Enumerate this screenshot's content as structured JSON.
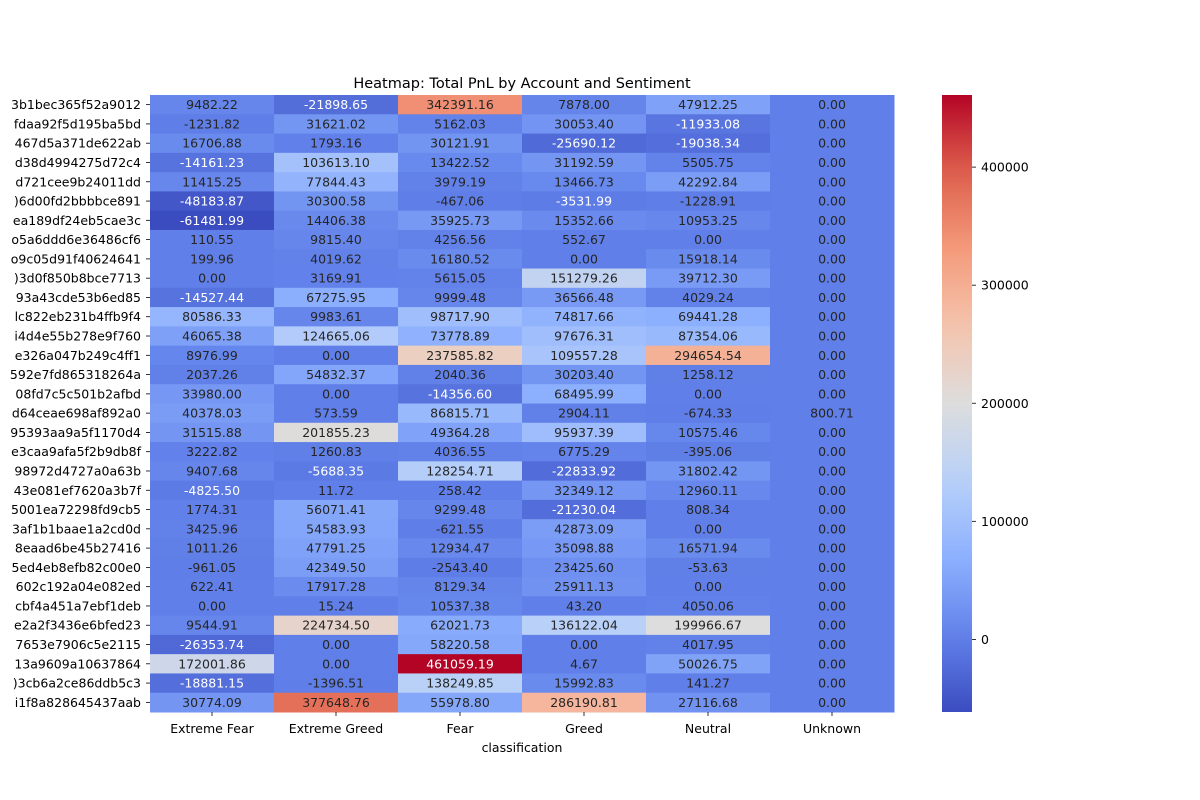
{
  "chart_data": {
    "type": "heatmap",
    "title": "Heatmap: Total PnL by Account and Sentiment",
    "xlabel": "classification",
    "ylabel": "",
    "columns": [
      "Extreme Fear",
      "Extreme Greed",
      "Fear",
      "Greed",
      "Neutral",
      "Unknown"
    ],
    "rows": [
      "3b1bec365f52a9012",
      "fdaa92f5d195ba5bd",
      "467d5a371de622ab",
      "d38d4994275d72c4",
      "d721cee9b24011dd",
      ")6d00fd2bbbbce891",
      "ea189df24eb5cae3c",
      "o5a6ddd6e36486cf6",
      "o9c05d91f40624641",
      ")3d0f850b8bce7713",
      "93a43cde53b6ed85",
      "lc822eb231b4ffb9f4",
      "i4d4e55b278e9f760",
      "e326a047b249c4ff1",
      "592e7fd865318264a",
      "08fd7c5c501b2afbd",
      "d64ceae698af892a0",
      "95393aa9a5f1170d4",
      "e3caa9afa5f2b9db8f",
      "98972d4727a0a63b",
      "43e081ef7620a3b7f",
      "5001ea72298fd9cb5",
      "3af1b1baae1a2cd0d",
      "8eaad6be45b27416",
      "5ed4eb8efb82c00e0",
      "602c192a04e082ed",
      "cbf4a451a7ebf1deb",
      "e2a2f3436e6bfed23",
      "7653e7906c5e2115",
      "13a9609a10637864",
      ")3cb6a2ce86ddb5c3",
      "i1f8a828645437aab"
    ],
    "values": [
      [
        9482.22,
        -21898.65,
        342391.16,
        7878.0,
        47912.25,
        0.0
      ],
      [
        -1231.82,
        31621.02,
        5162.03,
        30053.4,
        -11933.08,
        0.0
      ],
      [
        16706.88,
        1793.16,
        30121.91,
        -25690.12,
        -19038.34,
        0.0
      ],
      [
        -14161.23,
        103613.1,
        13422.52,
        31192.59,
        5505.75,
        0.0
      ],
      [
        11415.25,
        77844.43,
        3979.19,
        13466.73,
        42292.84,
        0.0
      ],
      [
        -48183.87,
        30300.58,
        -467.06,
        -3531.99,
        -1228.91,
        0.0
      ],
      [
        -61481.99,
        14406.38,
        35925.73,
        15352.66,
        10953.25,
        0.0
      ],
      [
        110.55,
        9815.4,
        4256.56,
        552.67,
        0.0,
        0.0
      ],
      [
        199.96,
        4019.62,
        16180.52,
        0.0,
        15918.14,
        0.0
      ],
      [
        0.0,
        3169.91,
        5615.05,
        151279.26,
        39712.3,
        0.0
      ],
      [
        -14527.44,
        67275.95,
        9999.48,
        36566.48,
        4029.24,
        0.0
      ],
      [
        80586.33,
        9983.61,
        98717.9,
        74817.66,
        69441.28,
        0.0
      ],
      [
        46065.38,
        124665.06,
        73778.89,
        97676.31,
        87354.06,
        0.0
      ],
      [
        8976.99,
        0.0,
        237585.82,
        109557.28,
        294654.54,
        0.0
      ],
      [
        2037.26,
        54832.37,
        2040.36,
        30203.4,
        1258.12,
        0.0
      ],
      [
        33980.0,
        0.0,
        -14356.6,
        68495.99,
        0.0,
        0.0
      ],
      [
        40378.03,
        573.59,
        86815.71,
        2904.11,
        -674.33,
        800.71
      ],
      [
        31515.88,
        201855.23,
        49364.28,
        95937.39,
        10575.46,
        0.0
      ],
      [
        3222.82,
        1260.83,
        4036.55,
        6775.29,
        -395.06,
        0.0
      ],
      [
        9407.68,
        -5688.35,
        128254.71,
        -22833.92,
        31802.42,
        0.0
      ],
      [
        -4825.5,
        11.72,
        258.42,
        32349.12,
        12960.11,
        0.0
      ],
      [
        1774.31,
        56071.41,
        9299.48,
        -21230.04,
        808.34,
        0.0
      ],
      [
        3425.96,
        54583.93,
        -621.55,
        42873.09,
        0.0,
        0.0
      ],
      [
        1011.26,
        47791.25,
        12934.47,
        35098.88,
        16571.94,
        0.0
      ],
      [
        -961.05,
        42349.5,
        -2543.4,
        23425.6,
        -53.63,
        0.0
      ],
      [
        622.41,
        17917.28,
        8129.34,
        25911.13,
        0.0,
        0.0
      ],
      [
        0.0,
        15.24,
        10537.38,
        43.2,
        4050.06,
        0.0
      ],
      [
        9544.91,
        224734.5,
        62021.73,
        136122.04,
        199966.67,
        0.0
      ],
      [
        -26353.74,
        0.0,
        58220.58,
        0.0,
        4017.95,
        0.0
      ],
      [
        172001.86,
        0.0,
        461059.19,
        4.67,
        50026.75,
        0.0
      ],
      [
        -18881.15,
        -1396.51,
        138249.85,
        15992.83,
        141.27,
        0.0
      ],
      [
        30774.09,
        377648.76,
        55978.8,
        286190.81,
        27116.68,
        0.0
      ]
    ],
    "colorbar": {
      "colormap": "coolwarm",
      "vmin": -61481.99,
      "vmax": 461059.19,
      "ticks": [
        0,
        100000,
        200000,
        300000,
        400000
      ],
      "tick_labels": [
        "0",
        "100000",
        "200000",
        "300000",
        "400000"
      ]
    },
    "cell_label_format": "2 decimals"
  }
}
